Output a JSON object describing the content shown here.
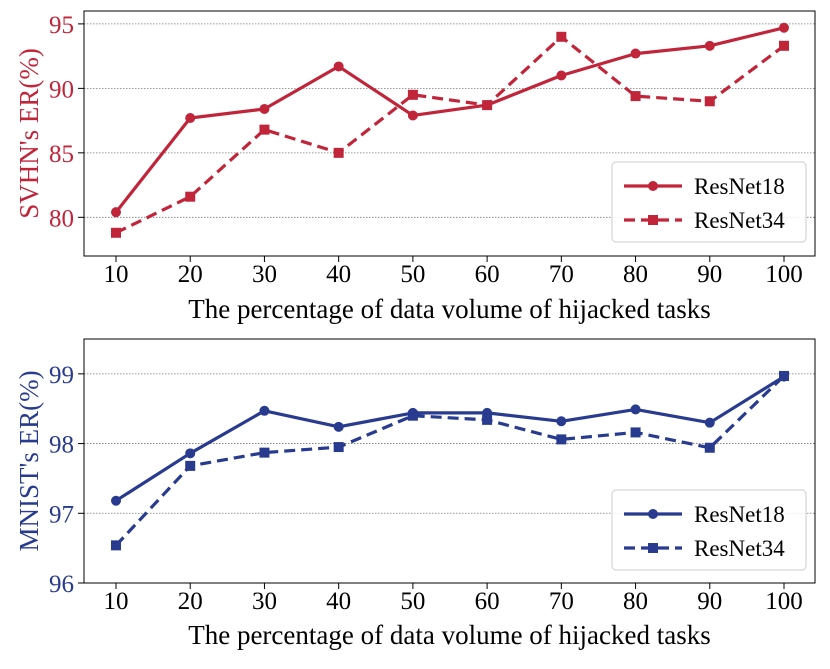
{
  "chart_data": [
    {
      "type": "line",
      "title": "",
      "xlabel": "The percentage of data volume of hijacked tasks",
      "ylabel": "SVHN's ER(%)",
      "x": [
        10,
        20,
        30,
        40,
        50,
        60,
        70,
        80,
        90,
        100
      ],
      "x_tick_labels": [
        "10",
        "20",
        "30",
        "40",
        "50",
        "60",
        "70",
        "80",
        "90",
        "100"
      ],
      "ylim": [
        77,
        96
      ],
      "yticks": [
        80,
        85,
        90,
        95
      ],
      "y_tick_labels": [
        "80",
        "85",
        "90",
        "95"
      ],
      "grid": "horizontal-dotted",
      "legend_position": "lower-right",
      "color": "#c0253a",
      "series": [
        {
          "name": "ResNet18",
          "marker": "circle",
          "linestyle": "solid",
          "values": [
            80.4,
            87.7,
            88.4,
            91.7,
            87.9,
            88.7,
            91.0,
            92.7,
            93.3,
            94.7
          ]
        },
        {
          "name": "ResNet34",
          "marker": "square",
          "linestyle": "dashed",
          "values": [
            78.8,
            81.6,
            86.8,
            85.0,
            89.5,
            88.7,
            94.0,
            89.4,
            89.0,
            93.3
          ]
        }
      ]
    },
    {
      "type": "line",
      "title": "",
      "xlabel": "The percentage of data volume of hijacked tasks",
      "ylabel": "MNIST's ER(%)",
      "x": [
        10,
        20,
        30,
        40,
        50,
        60,
        70,
        80,
        90,
        100
      ],
      "x_tick_labels": [
        "10",
        "20",
        "30",
        "40",
        "50",
        "60",
        "70",
        "80",
        "90",
        "100"
      ],
      "ylim": [
        96,
        99.5
      ],
      "yticks": [
        96,
        97,
        98,
        99
      ],
      "y_tick_labels": [
        "96",
        "97",
        "98",
        "99"
      ],
      "grid": "horizontal-dotted",
      "legend_position": "lower-right",
      "color": "#283b8f",
      "series": [
        {
          "name": "ResNet18",
          "marker": "circle",
          "linestyle": "solid",
          "values": [
            97.18,
            97.86,
            98.47,
            98.24,
            98.44,
            98.44,
            98.32,
            98.49,
            98.3,
            98.96
          ]
        },
        {
          "name": "ResNet34",
          "marker": "square",
          "linestyle": "dashed",
          "values": [
            96.54,
            97.68,
            97.87,
            97.95,
            98.4,
            98.34,
            98.06,
            98.16,
            97.94,
            98.97
          ]
        }
      ]
    }
  ]
}
